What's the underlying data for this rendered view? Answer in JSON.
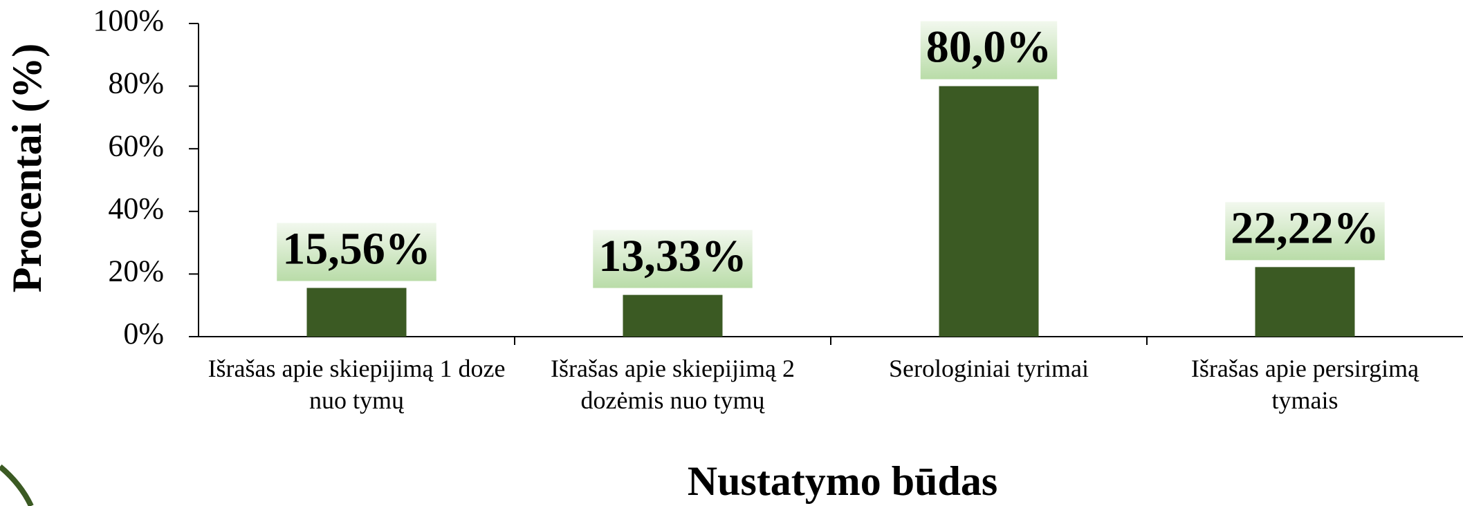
{
  "chart_data": {
    "type": "bar",
    "categories": [
      "Išrašas apie skiepijimą 1 doze nuo tymų",
      "Išrašas apie skiepijimą 2 dozėmis nuo tymų",
      "Serologiniai tyrimai",
      "Išrašas apie persirgimą tymais"
    ],
    "values": [
      15.56,
      13.33,
      80.0,
      22.22
    ],
    "value_labels": [
      "15,56%",
      "13,33%",
      "80,0%",
      "22,22%"
    ],
    "color": "#3b5a23",
    "ylim": [
      0,
      100
    ],
    "yticks": [
      {
        "value": 0,
        "label": "0%"
      },
      {
        "value": 20,
        "label": "20%"
      },
      {
        "value": 40,
        "label": "40%"
      },
      {
        "value": 60,
        "label": "60%"
      },
      {
        "value": 80,
        "label": "80%"
      },
      {
        "value": 100,
        "label": "100%"
      }
    ],
    "y_label": "Procentai (%)",
    "x_label": "Nustatymo būdas"
  }
}
